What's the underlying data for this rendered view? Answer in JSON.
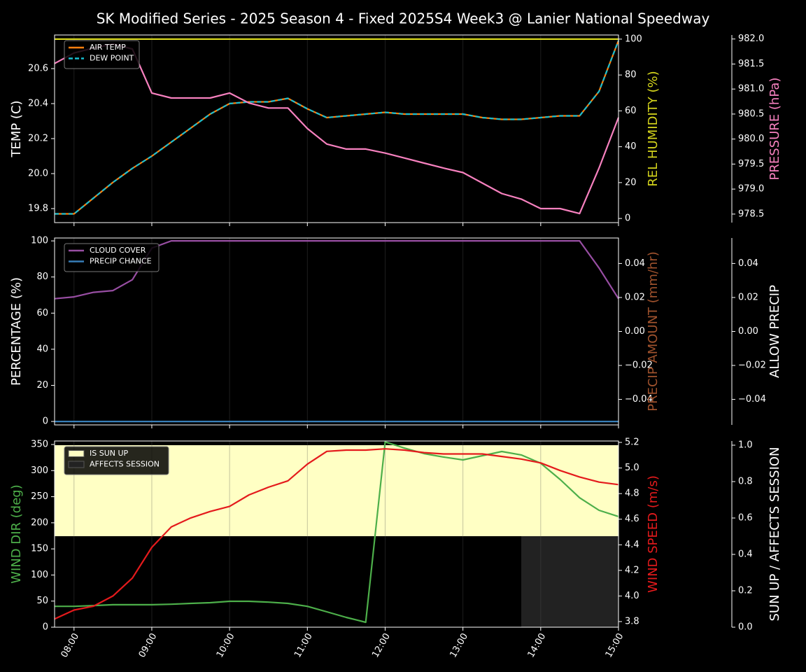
{
  "title": "SK Modified Series - 2025 Season 4 - Fixed 2025S4 Week3 @ Lanier National Speedway",
  "chart_data": [
    {
      "type": "line",
      "x": [
        7.75,
        8,
        8.25,
        8.5,
        8.75,
        9,
        9.25,
        9.5,
        9.75,
        10,
        10.25,
        10.5,
        10.75,
        11,
        11.25,
        11.5,
        11.75,
        12,
        12.25,
        12.5,
        12.75,
        13,
        13.25,
        13.5,
        13.75,
        14,
        14.25,
        14.5,
        14.75,
        15
      ],
      "xlim": [
        7.75,
        15
      ],
      "ylabel": "TEMP (C)",
      "ycolor": "#ffffff",
      "ylim": [
        19.72,
        20.792
      ],
      "yticks": [
        19.8,
        {
          "value": 20,
          "label": "20.0"
        },
        20.2,
        20.4,
        20.6
      ],
      "y2label": "REL HUMIDITY (%)",
      "y2color": "#d4d41c",
      "y2lim": [
        -2.3,
        102.3
      ],
      "y2ticks": [
        0,
        20,
        40,
        60,
        80,
        100
      ],
      "y3label": "PRESSURE (hPa)",
      "y3color": "#f781bf",
      "y3lim": [
        978.33,
        982.08
      ],
      "y3ticks": [
        978.5,
        {
          "value": 979,
          "label": "979.0"
        },
        979.5,
        {
          "value": 980,
          "label": "980.0"
        },
        980.5,
        {
          "value": 981,
          "label": "981.0"
        },
        981.5,
        {
          "value": 982,
          "label": "982.0"
        }
      ],
      "grid": true,
      "legend": "upper left",
      "series": [
        {
          "name": "AIR TEMP",
          "color": "#ff7f0e",
          "axis": "y",
          "values": [
            19.77,
            19.77,
            19.86,
            19.95,
            20.03,
            20.1,
            20.18,
            20.26,
            20.34,
            20.4,
            20.41,
            20.41,
            20.43,
            20.37,
            20.32,
            20.33,
            20.34,
            20.35,
            20.34,
            20.34,
            20.34,
            20.34,
            20.32,
            20.31,
            20.31,
            20.32,
            20.33,
            20.33,
            20.47,
            20.76
          ]
        },
        {
          "name": "DEW POINT",
          "color": "#17becf",
          "axis": "y",
          "dash": true,
          "values": [
            19.77,
            19.77,
            19.86,
            19.95,
            20.03,
            20.1,
            20.18,
            20.26,
            20.34,
            20.4,
            20.41,
            20.41,
            20.43,
            20.37,
            20.32,
            20.33,
            20.34,
            20.35,
            20.34,
            20.34,
            20.34,
            20.34,
            20.32,
            20.31,
            20.31,
            20.32,
            20.33,
            20.33,
            20.47,
            20.76
          ]
        },
        {
          "color": "#d4d41c",
          "axis": "y2",
          "values": [
            100,
            100,
            100,
            100,
            100,
            100,
            100,
            100,
            100,
            100,
            100,
            100,
            100,
            100,
            100,
            100,
            100,
            100,
            100,
            100,
            100,
            100,
            100,
            100,
            100,
            100,
            100,
            100,
            100,
            100
          ]
        },
        {
          "color": "#f781bf",
          "axis": "y3",
          "values": [
            981.51,
            981.72,
            981.82,
            981.9,
            981.8,
            980.92,
            980.82,
            980.82,
            980.82,
            980.92,
            980.72,
            980.62,
            980.62,
            980.21,
            979.9,
            979.8,
            979.8,
            979.72,
            979.62,
            979.52,
            979.42,
            979.33,
            979.12,
            978.91,
            978.8,
            978.61,
            978.61,
            978.51,
            979.42,
            980.43
          ]
        }
      ]
    },
    {
      "type": "line",
      "x": [
        7.75,
        8,
        8.25,
        8.5,
        8.75,
        9,
        9.25,
        9.5,
        9.75,
        10,
        10.25,
        10.5,
        10.75,
        11,
        11.25,
        11.5,
        11.75,
        12,
        12.25,
        12.5,
        12.75,
        13,
        13.25,
        13.5,
        13.75,
        14,
        14.25,
        14.5,
        14.75,
        15
      ],
      "xlim": [
        7.75,
        15
      ],
      "ylabel": "PERCENTAGE (%)",
      "ycolor": "#ffffff",
      "ylim": [
        -1.9,
        101.6
      ],
      "yticks": [
        0,
        20,
        40,
        60,
        80,
        100
      ],
      "y2label": "PRECIP AMOUNT (mm/hr)",
      "y2color": "#a0522d",
      "y2lim": [
        -0.055,
        0.055
      ],
      "y2ticks": [
        {
          "value": -0.04,
          "label": "−0.04"
        },
        {
          "value": -0.02,
          "label": "−0.02"
        },
        {
          "value": 0,
          "label": "0.00"
        },
        0.02,
        0.04
      ],
      "y3label": "ALLOW PRECIP",
      "y3color": "#ffffff",
      "y3lim": [
        -0.055,
        0.055
      ],
      "y3ticks": [
        {
          "value": -0.04,
          "label": "−0.04"
        },
        {
          "value": -0.02,
          "label": "−0.02"
        },
        {
          "value": 0,
          "label": "0.00"
        },
        0.02,
        0.04
      ],
      "grid": true,
      "legend": "upper left",
      "series": [
        {
          "name": "CLOUD COVER",
          "color": "#984ea3",
          "axis": "y",
          "values": [
            68,
            69,
            71.5,
            72.5,
            78.5,
            96,
            100,
            100,
            100,
            100,
            100,
            100,
            100,
            100,
            100,
            100,
            100,
            100,
            100,
            100,
            100,
            100,
            100,
            100,
            100,
            100,
            100,
            100,
            85,
            68
          ]
        },
        {
          "name": "PRECIP CHANCE",
          "color": "#377eb8",
          "axis": "y",
          "values": [
            0,
            0,
            0,
            0,
            0,
            0,
            0,
            0,
            0,
            0,
            0,
            0,
            0,
            0,
            0,
            0,
            0,
            0,
            0,
            0,
            0,
            0,
            0,
            0,
            0,
            0,
            0,
            0,
            0,
            0
          ]
        }
      ]
    },
    {
      "type": "line",
      "x": [
        7.75,
        8,
        8.25,
        8.5,
        8.75,
        9,
        9.25,
        9.5,
        9.75,
        10,
        10.25,
        10.5,
        10.75,
        11,
        11.25,
        11.5,
        11.75,
        12,
        12.25,
        12.5,
        12.75,
        13,
        13.25,
        13.5,
        13.75,
        14,
        14.25,
        14.5,
        14.75,
        15
      ],
      "xlim": [
        7.75,
        15
      ],
      "xticks": [
        {
          "value": 8,
          "label": "08:00"
        },
        {
          "value": 9,
          "label": "09:00"
        },
        {
          "value": 10,
          "label": "10:00"
        },
        {
          "value": 11,
          "label": "11:00"
        },
        {
          "value": 12,
          "label": "12:00"
        },
        {
          "value": 13,
          "label": "13:00"
        },
        {
          "value": 14,
          "label": "14:00"
        },
        {
          "value": 15,
          "label": "15:00"
        }
      ],
      "ylabel": "WIND DIR (deg)",
      "ycolor": "#4daf4a",
      "ylim": [
        0,
        356.7
      ],
      "yticks": [
        0,
        50,
        100,
        150,
        200,
        250,
        300,
        350
      ],
      "y2label": "WIND SPEED (m/s)",
      "y2color": "#e41a1c",
      "y2lim": [
        3.756,
        5.211
      ],
      "y2ticks": [
        3.8,
        {
          "value": 4,
          "label": "4.0"
        },
        4.2,
        4.4,
        4.6,
        4.8,
        {
          "value": 5,
          "label": "5.0"
        },
        5.2
      ],
      "y3label": "SUN UP / AFFECTS SESSION",
      "y3color": "#ffffff",
      "y3lim": [
        0,
        1.023
      ],
      "y3ticks": [
        {
          "value": 0,
          "label": "0.0"
        },
        0.2,
        0.4,
        0.6,
        0.8,
        {
          "value": 1,
          "label": "1.0"
        }
      ],
      "grid": true,
      "legend": "upper left",
      "series": [
        {
          "name": "IS SUN UP",
          "color": "#ffffc4",
          "axis": "y3",
          "band": true,
          "values": [
            1,
            1,
            1,
            1,
            1,
            1,
            1,
            1,
            1,
            1,
            1,
            1,
            1,
            1,
            1,
            1,
            1,
            1,
            1,
            1,
            1,
            1,
            1,
            1,
            1,
            1,
            1,
            1,
            1,
            1
          ]
        },
        {
          "name": "AFFECTS SESSION",
          "color": "#222222",
          "axis": "y3",
          "band": true,
          "values": [
            0,
            0,
            0,
            0,
            0,
            0,
            0,
            0,
            0,
            0,
            0,
            0,
            0,
            0,
            0,
            0,
            0,
            0,
            0,
            0,
            0,
            0,
            0,
            0,
            1,
            1,
            1,
            1,
            1,
            1
          ]
        },
        {
          "color": "#4daf4a",
          "axis": "y",
          "values": [
            40,
            40,
            41.5,
            43,
            43,
            43,
            44,
            45.6,
            47,
            49.6,
            49.6,
            48,
            45.6,
            40,
            29.5,
            18.8,
            9.4,
            355,
            343,
            332.6,
            326,
            320.5,
            328.5,
            336.6,
            330,
            314,
            283,
            248,
            224,
            212
          ]
        },
        {
          "color": "#e41a1c",
          "axis": "y2",
          "values": [
            3.82,
            3.89,
            3.92,
            4.0,
            4.14,
            4.38,
            4.54,
            4.61,
            4.66,
            4.7,
            4.79,
            4.85,
            4.9,
            5.03,
            5.13,
            5.14,
            5.14,
            5.15,
            5.14,
            5.12,
            5.11,
            5.11,
            5.11,
            5.09,
            5.07,
            5.04,
            4.98,
            4.93,
            4.89,
            4.87
          ]
        }
      ]
    }
  ]
}
